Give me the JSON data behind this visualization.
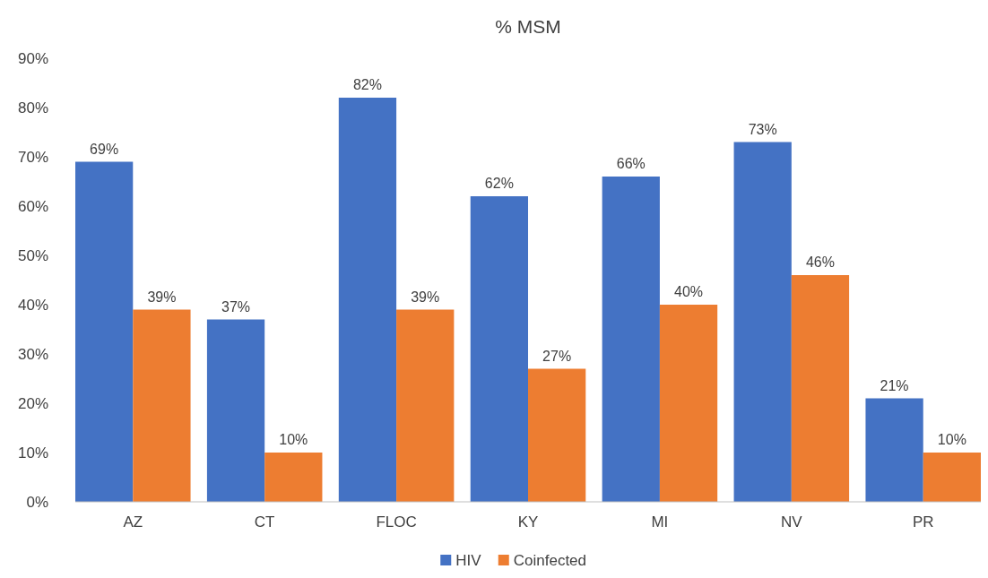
{
  "chart_data": {
    "type": "bar",
    "title": "% MSM",
    "categories": [
      "AZ",
      "CT",
      "FLOC",
      "KY",
      "MI",
      "NV",
      "PR"
    ],
    "series": [
      {
        "name": "HIV",
        "color": "#4472c4",
        "values": [
          69,
          37,
          82,
          62,
          66,
          73,
          21
        ],
        "value_labels": [
          "69%",
          "37%",
          "82%",
          "62%",
          "66%",
          "73%",
          "21%"
        ]
      },
      {
        "name": "Coinfected",
        "color": "#ed7d31",
        "values": [
          39,
          10,
          39,
          27,
          40,
          46,
          10
        ],
        "value_labels": [
          "39%",
          "10%",
          "39%",
          "27%",
          "40%",
          "46%",
          "10%"
        ]
      }
    ],
    "ylim": [
      0,
      90
    ],
    "yticks": [
      {
        "value": 0,
        "label": "0%"
      },
      {
        "value": 10,
        "label": "10%"
      },
      {
        "value": 20,
        "label": "20%"
      },
      {
        "value": 30,
        "label": "30%"
      },
      {
        "value": 40,
        "label": "40%"
      },
      {
        "value": 50,
        "label": "50%"
      },
      {
        "value": 60,
        "label": "60%"
      },
      {
        "value": 70,
        "label": "70%"
      },
      {
        "value": 80,
        "label": "80%"
      },
      {
        "value": 90,
        "label": "90%"
      }
    ],
    "legend": "bottom"
  }
}
